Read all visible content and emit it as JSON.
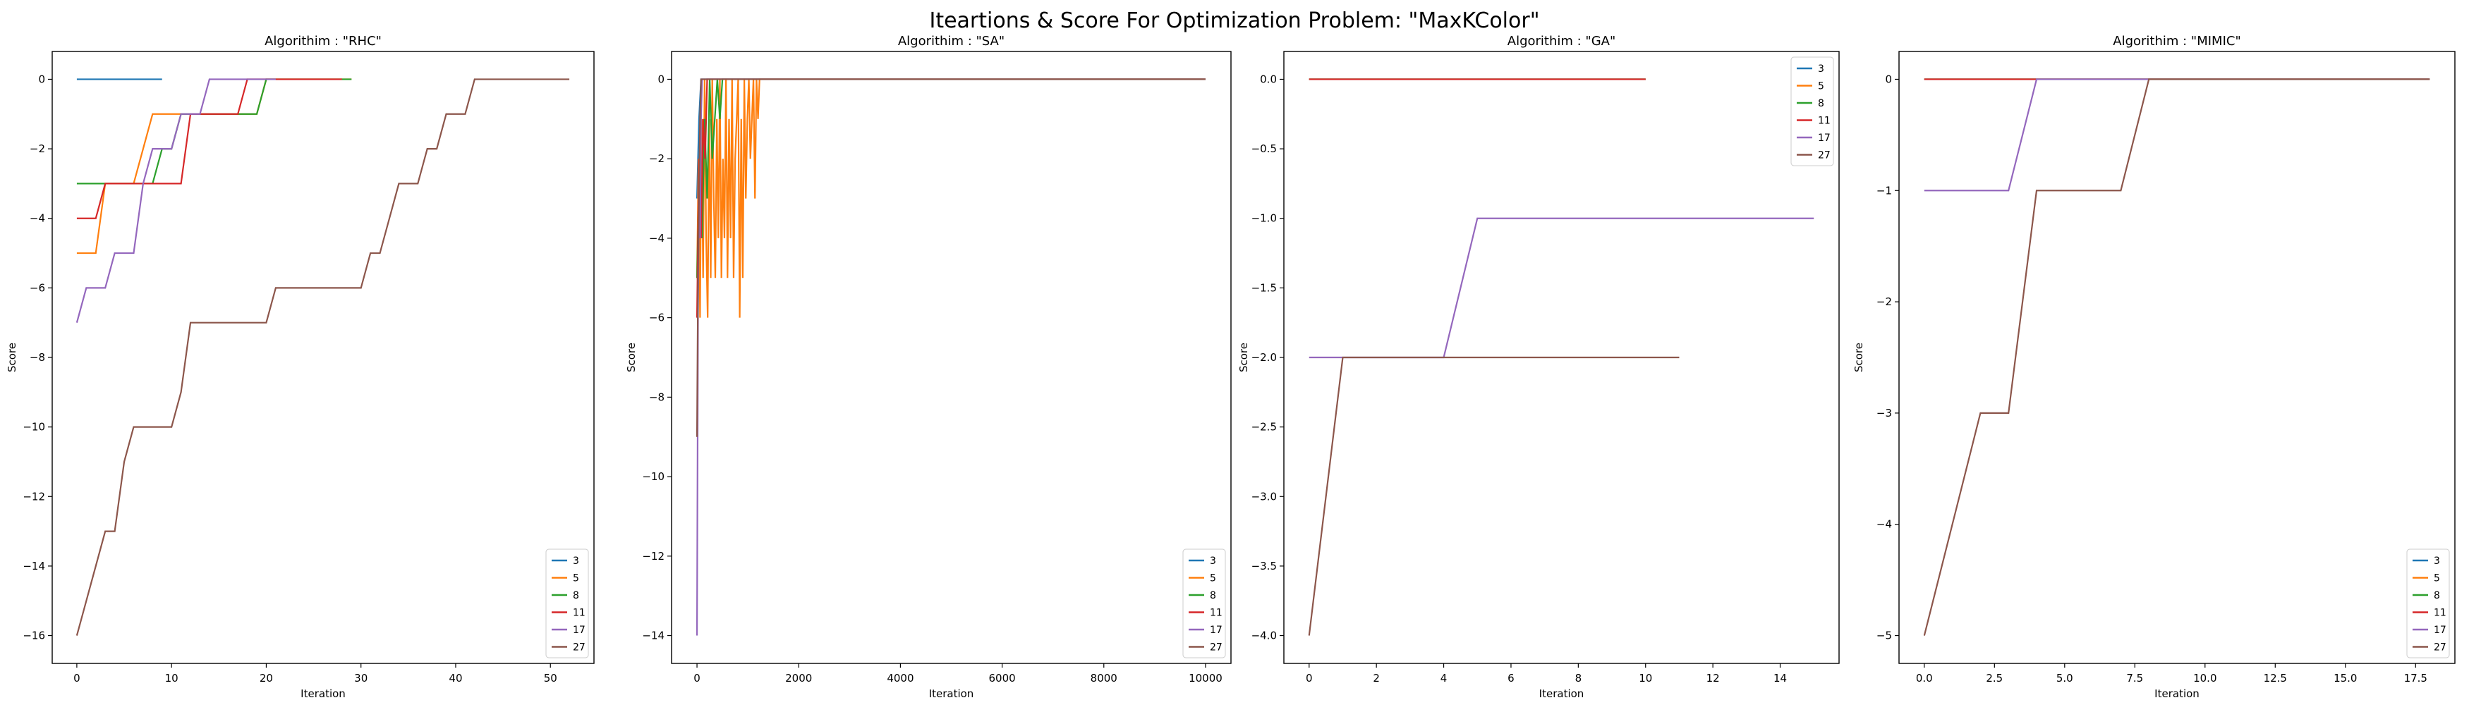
{
  "figure": {
    "suptitle": "Iteartions & Score For Optimization Problem: \"MaxKColor\""
  },
  "legend_labels": [
    "3",
    "5",
    "8",
    "11",
    "17",
    "27"
  ],
  "series_colors": [
    "#1f77b4",
    "#ff7f0e",
    "#2ca02c",
    "#d62728",
    "#9467bd",
    "#8c564b"
  ],
  "chart_data": [
    {
      "type": "line",
      "title": "Algorithim : \"RHC\"",
      "xlabel": "Iteration",
      "ylabel": "Score",
      "xlim": [
        -2.6,
        54.6
      ],
      "ylim": [
        -16.8,
        0.8
      ],
      "xticks": [
        0,
        10,
        20,
        30,
        40,
        50
      ],
      "yticks": [
        0,
        -2,
        -4,
        -6,
        -8,
        -10,
        -12,
        -14,
        -16
      ],
      "ytick_labels": [
        "0",
        "−2",
        "−4",
        "−6",
        "−8",
        "−10",
        "−12",
        "−14",
        "−16"
      ],
      "legend_position": "lower right",
      "series": [
        {
          "name": "3",
          "x": [
            0,
            9
          ],
          "y": [
            0,
            0
          ]
        },
        {
          "name": "5",
          "x": [
            0,
            2,
            3,
            4,
            5,
            6,
            7,
            8,
            9,
            10,
            11,
            12,
            13,
            14,
            15,
            16,
            17,
            18,
            19,
            20,
            21,
            22,
            23,
            24,
            25,
            26,
            27,
            28,
            29
          ],
          "y": [
            -5,
            -5,
            -3,
            -3,
            -3,
            -3,
            -2,
            -1,
            -1,
            -1,
            -1,
            -1,
            -1,
            -1,
            -1,
            -1,
            -1,
            -1,
            -1,
            0,
            0,
            0,
            0,
            0,
            0,
            0,
            0,
            0,
            0
          ]
        },
        {
          "name": "8",
          "x": [
            0,
            3,
            4,
            5,
            6,
            7,
            8,
            9,
            10,
            11,
            12,
            13,
            14,
            15,
            16,
            17,
            18,
            19,
            20,
            21,
            22,
            23,
            24,
            25,
            26,
            27,
            28,
            29
          ],
          "y": [
            -3,
            -3,
            -3,
            -3,
            -3,
            -3,
            -3,
            -2,
            -2,
            -1,
            -1,
            -1,
            -1,
            -1,
            -1,
            -1,
            -1,
            -1,
            0,
            0,
            0,
            0,
            0,
            0,
            0,
            0,
            0,
            0
          ]
        },
        {
          "name": "11",
          "x": [
            0,
            2,
            3,
            4,
            5,
            6,
            7,
            8,
            9,
            10,
            11,
            12,
            13,
            14,
            15,
            16,
            17,
            18,
            19,
            20,
            21,
            22,
            23,
            24,
            25,
            26,
            27,
            28
          ],
          "y": [
            -4,
            -4,
            -3,
            -3,
            -3,
            -3,
            -3,
            -3,
            -3,
            -3,
            -3,
            -1,
            -1,
            -1,
            -1,
            -1,
            -1,
            0,
            0,
            0,
            0,
            0,
            0,
            0,
            0,
            0,
            0,
            0
          ]
        },
        {
          "name": "17",
          "x": [
            0,
            1,
            2,
            3,
            4,
            5,
            6,
            7,
            8,
            9,
            10,
            11,
            12,
            13,
            14,
            15,
            16,
            17,
            18,
            19,
            20,
            21
          ],
          "y": [
            -7,
            -6,
            -6,
            -6,
            -5,
            -5,
            -5,
            -3,
            -2,
            -2,
            -2,
            -1,
            -1,
            -1,
            0,
            0,
            0,
            0,
            0,
            0,
            0,
            0
          ]
        },
        {
          "name": "27",
          "x": [
            0,
            1,
            2,
            3,
            4,
            5,
            6,
            7,
            8,
            9,
            10,
            11,
            12,
            13,
            14,
            15,
            16,
            17,
            18,
            19,
            20,
            21,
            22,
            23,
            24,
            25,
            26,
            27,
            28,
            29,
            30,
            31,
            32,
            33,
            34,
            35,
            36,
            37,
            38,
            39,
            40,
            41,
            42,
            43,
            44,
            45,
            46,
            47,
            48,
            49,
            50,
            51,
            52
          ],
          "y": [
            -16,
            -15,
            -14,
            -13,
            -13,
            -11,
            -10,
            -10,
            -10,
            -10,
            -10,
            -9,
            -7,
            -7,
            -7,
            -7,
            -7,
            -7,
            -7,
            -7,
            -7,
            -6,
            -6,
            -6,
            -6,
            -6,
            -6,
            -6,
            -6,
            -6,
            -6,
            -5,
            -5,
            -4,
            -3,
            -3,
            -3,
            -2,
            -2,
            -1,
            -1,
            -1,
            0,
            0,
            0,
            0,
            0,
            0,
            0,
            0,
            0,
            0,
            0
          ]
        }
      ]
    },
    {
      "type": "line",
      "title": "Algorithim : \"SA\"",
      "xlabel": "Iteration",
      "ylabel": "Score",
      "xlim": [
        -500,
        10500
      ],
      "ylim": [
        -14.7,
        0.7
      ],
      "xticks": [
        0,
        2000,
        4000,
        6000,
        8000,
        10000
      ],
      "yticks": [
        0,
        -2,
        -4,
        -6,
        -8,
        -10,
        -12,
        -14
      ],
      "ytick_labels": [
        "0",
        "−2",
        "−4",
        "−6",
        "−8",
        "−10",
        "−12",
        "−14"
      ],
      "legend_position": "lower right",
      "series": [
        {
          "name": "3",
          "x": [
            0,
            40,
            80,
            10000
          ],
          "y": [
            -3,
            -1,
            0,
            0
          ]
        },
        {
          "name": "5",
          "x": [
            0,
            30,
            60,
            90,
            120,
            150,
            180,
            210,
            240,
            270,
            300,
            330,
            360,
            390,
            420,
            450,
            480,
            510,
            540,
            570,
            600,
            630,
            660,
            690,
            720,
            750,
            780,
            810,
            840,
            870,
            900,
            930,
            960,
            990,
            1020,
            1050,
            1080,
            1110,
            1140,
            1170,
            1200,
            1230,
            10000
          ],
          "y": [
            -5,
            -2,
            -6,
            -1,
            -5,
            0,
            -4,
            -6,
            -1,
            -5,
            0,
            -3,
            -5,
            -1,
            -4,
            0,
            -5,
            -2,
            -4,
            0,
            -5,
            -1,
            -4,
            0,
            -5,
            -2,
            -1,
            0,
            -6,
            -1,
            -5,
            0,
            -3,
            -1,
            0,
            -2,
            -1,
            0,
            -3,
            0,
            -1,
            0,
            0
          ]
        },
        {
          "name": "8",
          "x": [
            0,
            50,
            100,
            150,
            200,
            250,
            300,
            350,
            400,
            450,
            500,
            10000
          ],
          "y": [
            -5,
            -2,
            -4,
            -1,
            -3,
            0,
            -2,
            -1,
            0,
            -1,
            0,
            0
          ]
        },
        {
          "name": "11",
          "x": [
            0,
            40,
            80,
            120,
            160,
            200,
            240,
            10000
          ],
          "y": [
            -6,
            -2,
            -4,
            -1,
            -2,
            0,
            0,
            0
          ]
        },
        {
          "name": "17",
          "x": [
            0,
            20,
            40,
            60,
            80,
            100,
            140,
            10000
          ],
          "y": [
            -14,
            -6,
            -3,
            -4,
            -1,
            0,
            0,
            0
          ]
        },
        {
          "name": "27",
          "x": [
            0,
            20,
            40,
            60,
            80,
            120,
            10000
          ],
          "y": [
            -9,
            -5,
            -3,
            -1,
            0,
            0,
            0
          ]
        }
      ]
    },
    {
      "type": "line",
      "title": "Algorithim : \"GA\"",
      "xlabel": "Iteration",
      "ylabel": "Score",
      "xlim": [
        -0.75,
        15.75
      ],
      "ylim": [
        -4.2,
        0.2
      ],
      "xticks": [
        0,
        2,
        4,
        6,
        8,
        10,
        12,
        14
      ],
      "yticks": [
        0.0,
        -0.5,
        -1.0,
        -1.5,
        -2.0,
        -2.5,
        -3.0,
        -3.5,
        -4.0
      ],
      "ytick_labels": [
        "0.0",
        "−0.5",
        "−1.0",
        "−1.5",
        "−2.0",
        "−2.5",
        "−3.0",
        "−3.5",
        "−4.0"
      ],
      "legend_position": "upper right",
      "series": [
        {
          "name": "3",
          "x": [
            0,
            10
          ],
          "y": [
            0,
            0
          ]
        },
        {
          "name": "5",
          "x": [
            0,
            10
          ],
          "y": [
            0,
            0
          ]
        },
        {
          "name": "8",
          "x": [
            0,
            10
          ],
          "y": [
            0,
            0
          ]
        },
        {
          "name": "11",
          "x": [
            0,
            10
          ],
          "y": [
            0,
            0
          ]
        },
        {
          "name": "17",
          "x": [
            0,
            1,
            2,
            3,
            4,
            5,
            6,
            7,
            8,
            9,
            10,
            11,
            12,
            13,
            14,
            15
          ],
          "y": [
            -2,
            -2,
            -2,
            -2,
            -2,
            -1,
            -1,
            -1,
            -1,
            -1,
            -1,
            -1,
            -1,
            -1,
            -1,
            -1
          ]
        },
        {
          "name": "27",
          "x": [
            0,
            1,
            2,
            3,
            4,
            5,
            6,
            7,
            8,
            9,
            10,
            11
          ],
          "y": [
            -4,
            -2,
            -2,
            -2,
            -2,
            -2,
            -2,
            -2,
            -2,
            -2,
            -2,
            -2
          ]
        }
      ]
    },
    {
      "type": "line",
      "title": "Algorithim : \"MIMIC\"",
      "xlabel": "Iteration",
      "ylabel": "Score",
      "xlim": [
        -0.9,
        18.9
      ],
      "ylim": [
        -5.25,
        0.25
      ],
      "xticks": [
        0,
        2.5,
        5,
        7.5,
        10,
        12.5,
        15,
        17.5
      ],
      "xtick_labels": [
        "0.0",
        "2.5",
        "5.0",
        "7.5",
        "10.0",
        "12.5",
        "15.0",
        "17.5"
      ],
      "yticks": [
        0,
        -1,
        -2,
        -3,
        -4,
        -5
      ],
      "ytick_labels": [
        "0",
        "−1",
        "−2",
        "−3",
        "−4",
        "−5"
      ],
      "legend_position": "lower right",
      "series": [
        {
          "name": "3",
          "x": [
            0,
            18
          ],
          "y": [
            0,
            0
          ]
        },
        {
          "name": "5",
          "x": [
            0,
            18
          ],
          "y": [
            0,
            0
          ]
        },
        {
          "name": "8",
          "x": [
            0,
            18
          ],
          "y": [
            0,
            0
          ]
        },
        {
          "name": "11",
          "x": [
            0,
            18
          ],
          "y": [
            0,
            0
          ]
        },
        {
          "name": "17",
          "x": [
            0,
            1,
            2,
            3,
            4,
            5,
            6,
            7,
            8,
            9,
            10,
            11,
            12,
            13,
            14,
            15,
            16,
            17,
            18
          ],
          "y": [
            -1,
            -1,
            -1,
            -1,
            0,
            0,
            0,
            0,
            0,
            0,
            0,
            0,
            0,
            0,
            0,
            0,
            0,
            0,
            0
          ]
        },
        {
          "name": "27",
          "x": [
            0,
            1,
            2,
            3,
            4,
            5,
            6,
            7,
            8,
            9,
            10,
            11,
            12,
            13,
            14,
            15,
            16,
            17,
            18
          ],
          "y": [
            -5,
            -4,
            -3,
            -3,
            -1,
            -1,
            -1,
            -1,
            0,
            0,
            0,
            0,
            0,
            0,
            0,
            0,
            0,
            0,
            0
          ]
        }
      ]
    }
  ]
}
